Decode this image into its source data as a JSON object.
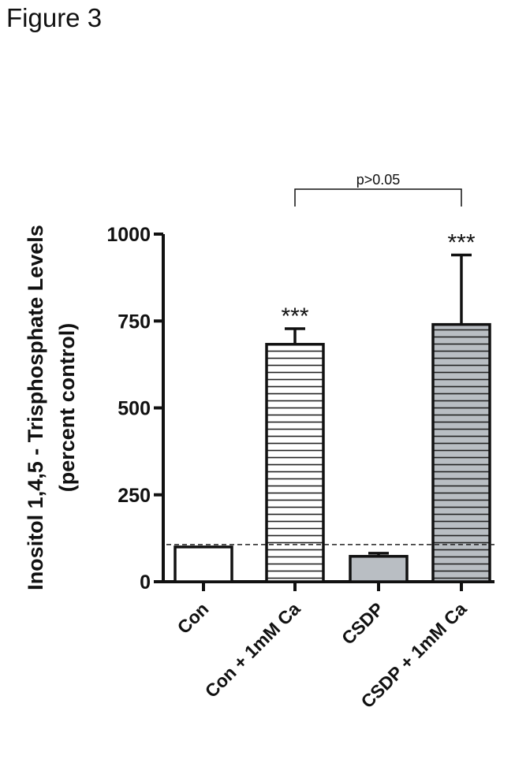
{
  "figure_title": "Figure 3",
  "chart_data": {
    "type": "bar",
    "ylabel_line1": "Inositol 1,4,5 - Trisphosphate Levels",
    "ylabel_line2": "(percent control)",
    "xlabel": "",
    "ylim": [
      0,
      1000
    ],
    "yticks": [
      0,
      250,
      500,
      750,
      1000
    ],
    "categories": [
      "Con",
      "Con + 1mM Ca",
      "CSDP",
      "CSDP + 1mM Ca"
    ],
    "values": [
      100,
      683,
      73,
      740
    ],
    "errors": [
      0,
      45,
      9,
      200
    ],
    "fills": [
      "#ffffff",
      "#ffffff",
      "#b9bec3",
      "#b9bec3"
    ],
    "hatch": [
      false,
      true,
      false,
      true
    ],
    "significance": [
      "",
      "***",
      "",
      "***"
    ],
    "reference_line": 107,
    "comparison": {
      "from": 1,
      "to": 3,
      "label": "p>0.05"
    }
  }
}
